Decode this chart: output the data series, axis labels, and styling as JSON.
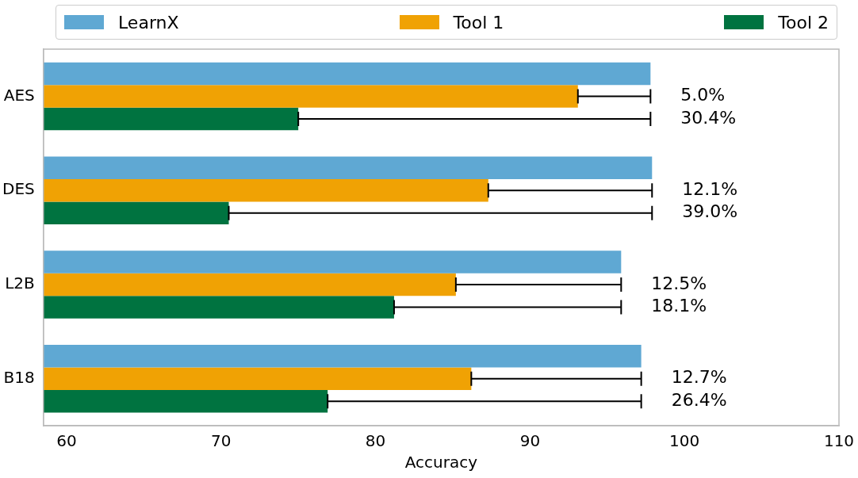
{
  "chart_data": {
    "type": "bar",
    "orientation": "horizontal",
    "xlabel": "Accuracy",
    "categories": [
      "AES",
      "DES",
      "L2B",
      "B18"
    ],
    "series": [
      {
        "name": "LearnX",
        "color": "#5fa8d3",
        "values": [
          97.8,
          97.9,
          95.9,
          97.2
        ]
      },
      {
        "name": "Tool 1",
        "color": "#f0a204",
        "values": [
          93.1,
          87.3,
          85.2,
          86.2
        ],
        "errors": [
          [
            93.1,
            97.8
          ],
          [
            87.3,
            97.9
          ],
          [
            85.2,
            95.9
          ],
          [
            86.2,
            97.2
          ]
        ]
      },
      {
        "name": "Tool 2",
        "color": "#007340",
        "values": [
          75.0,
          70.5,
          81.2,
          76.9
        ],
        "errors": [
          [
            75.0,
            97.8
          ],
          [
            70.5,
            97.9
          ],
          [
            81.2,
            95.9
          ],
          [
            76.9,
            97.2
          ]
        ]
      }
    ],
    "annotations": [
      {
        "text": "5.0%",
        "x": 97.8,
        "y": "AES"
      },
      {
        "text": "30.4%",
        "x": 97.8,
        "y": "AES"
      },
      {
        "text": "12.1%",
        "x": 97.9,
        "y": "DES"
      },
      {
        "text": "39.0%",
        "x": 97.9,
        "y": "DES"
      },
      {
        "text": "12.5%",
        "x": 95.9,
        "y": "L2B"
      },
      {
        "text": "18.1%",
        "x": 95.9,
        "y": "L2B"
      },
      {
        "text": "12.7%",
        "x": 97.2,
        "y": "B18"
      },
      {
        "text": "26.4%",
        "x": 97.2,
        "y": "B18"
      }
    ],
    "xlim": [
      58.5,
      110
    ],
    "xticks": [
      60,
      70,
      80,
      90,
      100,
      110
    ],
    "grid": false,
    "legend": "top"
  }
}
